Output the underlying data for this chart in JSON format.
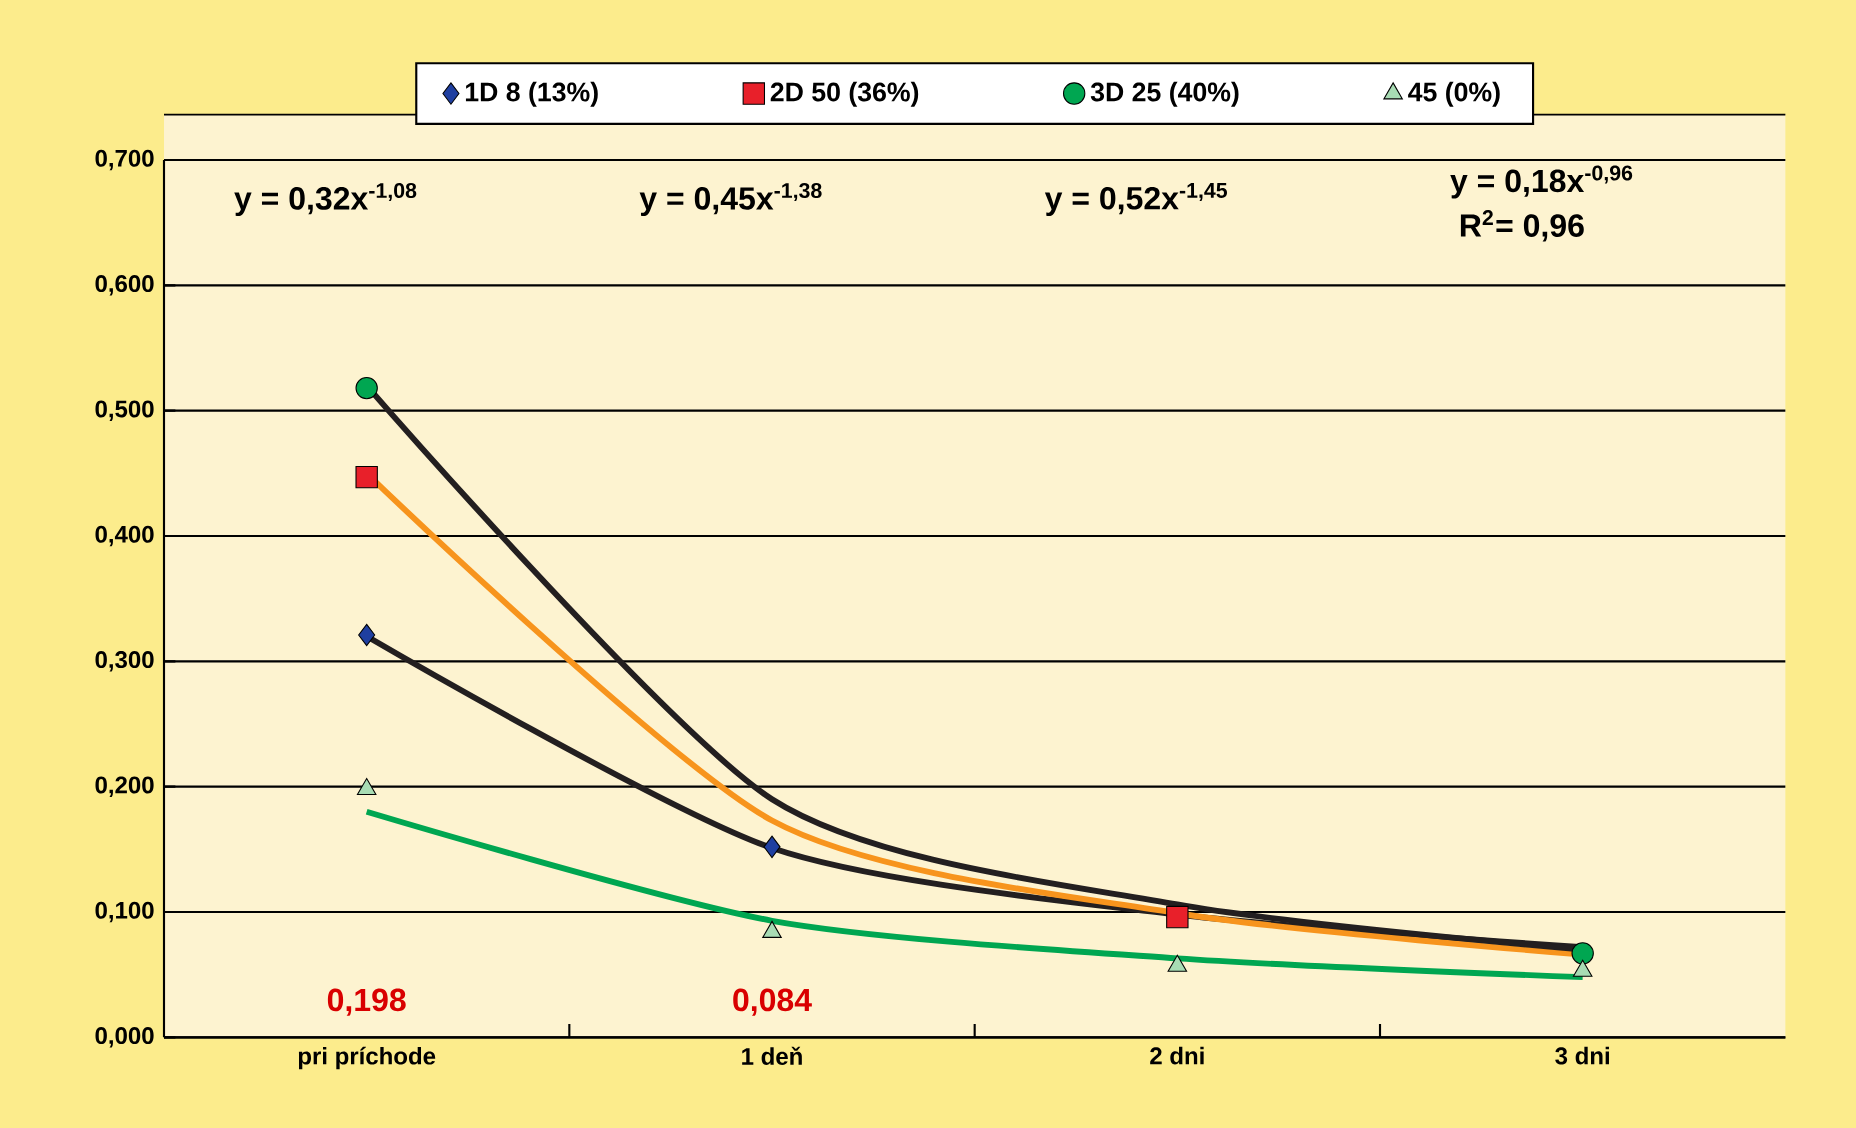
{
  "chart_data": {
    "type": "line",
    "categories": [
      "pri príchode",
      "1 deň",
      "2 dni",
      "3 dni"
    ],
    "series": [
      {
        "name": "1D 8 (13%)",
        "type": "scatter",
        "color": "#1f3fa0",
        "marker": "diamond",
        "values": [
          0.321,
          0.152,
          null,
          null
        ]
      },
      {
        "name": "2D 50 (36%)",
        "type": "scatter",
        "color": "#e8202a",
        "marker": "square",
        "values": [
          0.447,
          null,
          0.096,
          null
        ]
      },
      {
        "name": "3D 25 (40%)",
        "type": "scatter",
        "color": "#00a651",
        "marker": "circle",
        "values": [
          0.518,
          null,
          null,
          0.067
        ]
      },
      {
        "name": "45 (0%)",
        "type": "scatter",
        "color": "#a8dcb4",
        "marker": "triangle",
        "values": [
          0.198,
          0.084,
          0.057,
          0.053
        ]
      },
      {
        "color": "#231f20",
        "values": [
          0.32,
          0.151,
          0.098,
          0.072
        ]
      },
      {
        "color": "#f7941d",
        "values": [
          0.45,
          0.173,
          0.099,
          0.066
        ]
      },
      {
        "color": "#231f20",
        "values": [
          0.52,
          0.19,
          0.106,
          0.07
        ]
      },
      {
        "color": "#00a651",
        "values": [
          0.18,
          0.093,
          0.063,
          0.048
        ]
      }
    ],
    "annotations": [
      "y = 0,32x$^{-1,08}$",
      "y = 0,45x$^{-1,38}$",
      "y = 0,52x$^{-1,45}$",
      "y = 0,18x$^{-0,96}$",
      "R$^{2}$= 0,96",
      "0,198",
      "0,084"
    ],
    "ylim": [
      0,
      0.7
    ],
    "yticks": [
      {
        "value": 0,
        "label": "0,000"
      },
      {
        "value": 0.1,
        "label": "0,100"
      },
      {
        "value": 0.2,
        "label": "0,200"
      },
      {
        "value": 0.3,
        "label": "0,300"
      },
      {
        "value": 0.4,
        "label": "0,400"
      },
      {
        "value": 0.5,
        "label": "0,500"
      },
      {
        "value": 0.6,
        "label": "0,600"
      },
      {
        "value": 0.7,
        "label": "0,700"
      }
    ],
    "grid": "y",
    "legend": "top"
  }
}
